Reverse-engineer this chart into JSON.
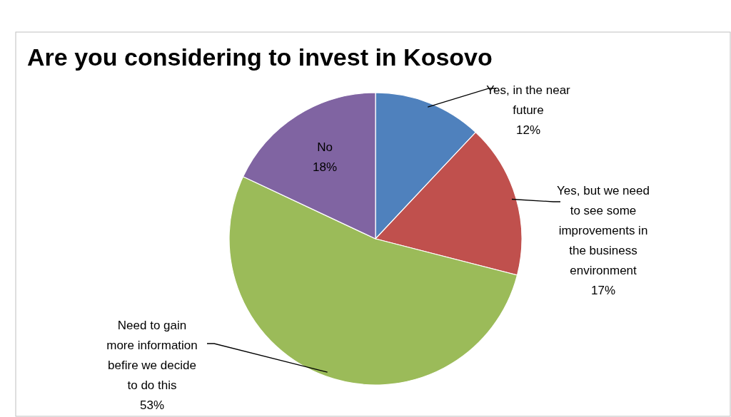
{
  "chart_data": {
    "type": "pie",
    "title": "Are you considering to invest in Kosovo",
    "categories": [
      "Yes, in the near future",
      "Yes, but we need to see some improvements in the business environment",
      "Need to gain more information befire we decide to do this",
      "No"
    ],
    "values": [
      12,
      17,
      53,
      18
    ],
    "colors": [
      "#4f81bd",
      "#c0504d",
      "#9bbb59",
      "#8064a2"
    ],
    "value_labels": [
      "12%",
      "17%",
      "53%",
      "18%"
    ]
  }
}
